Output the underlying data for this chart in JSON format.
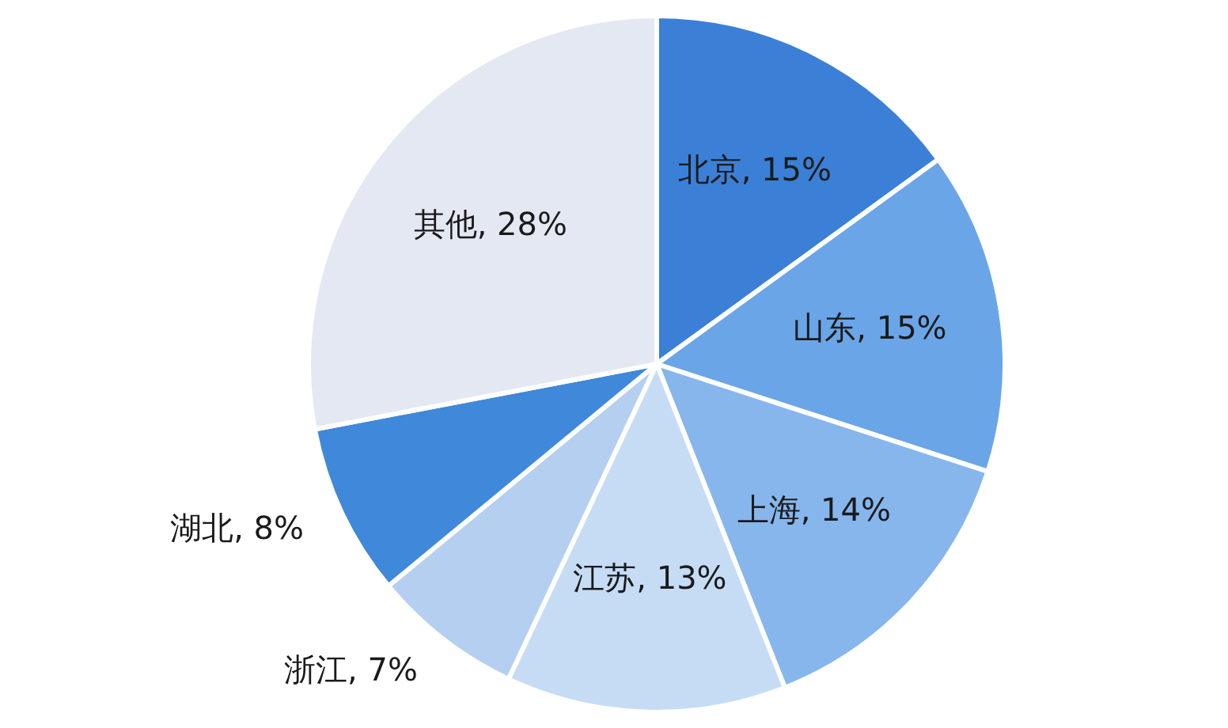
{
  "chart_data": {
    "type": "pie",
    "categories": [
      "北京",
      "山东",
      "上海",
      "江苏",
      "浙江",
      "湖北",
      "其他"
    ],
    "values": [
      15,
      15,
      14,
      13,
      7,
      8,
      28
    ],
    "colors": [
      "#3b80d6",
      "#6aa5e8",
      "#86b6ec",
      "#c6dcf5",
      "#b4cff0",
      "#4088da",
      "#e4e8f3"
    ],
    "value_labels": [
      ", 15%",
      ", 15%",
      ", 14%",
      ", 13%",
      ", 7%",
      ", 8%",
      ", 28%"
    ]
  }
}
